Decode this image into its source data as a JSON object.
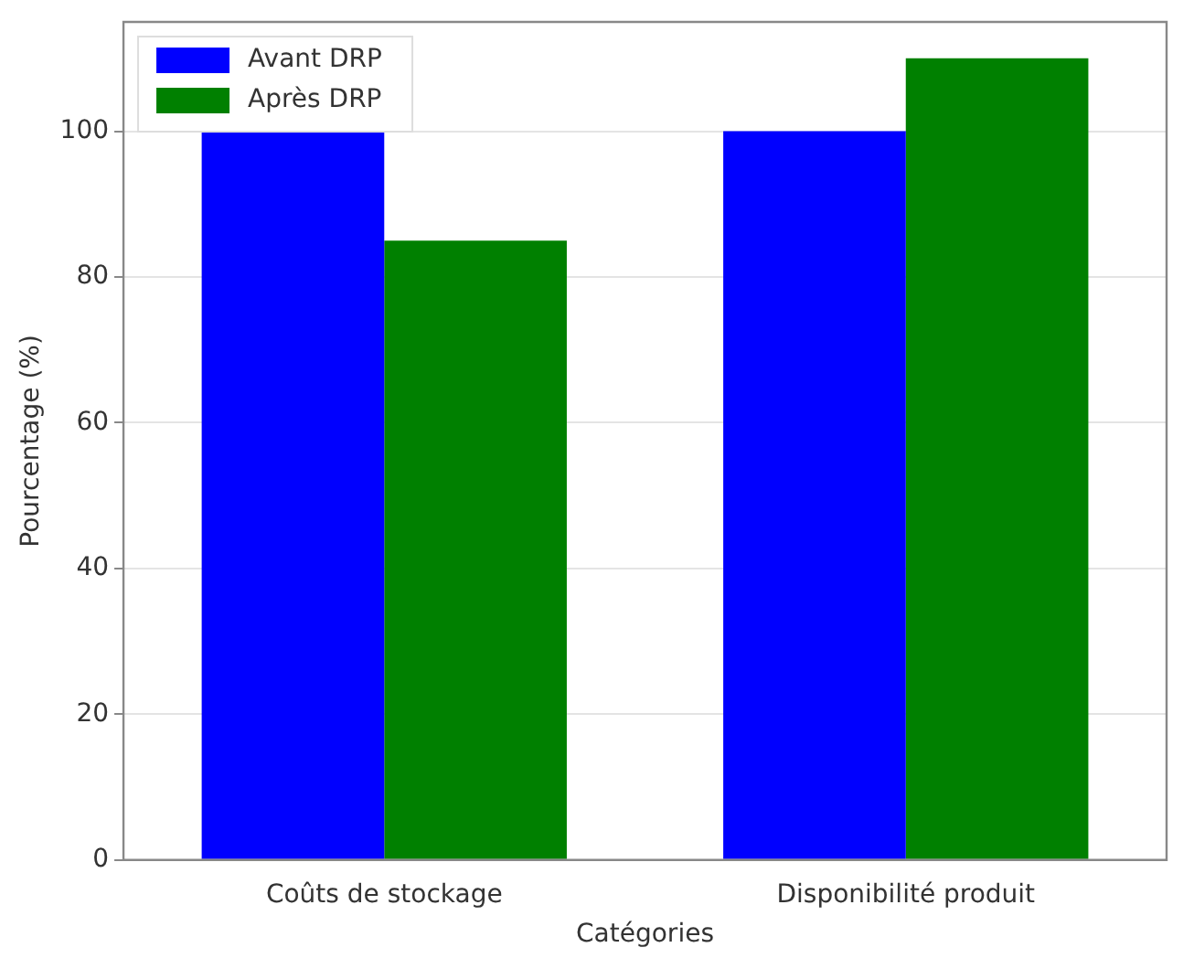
{
  "chart_data": {
    "type": "bar",
    "xlabel": "Catégories",
    "ylabel": "Pourcentage (%)",
    "categories": [
      "Coûts de stockage",
      "Disponibilité produit"
    ],
    "series": [
      {
        "name": "Avant DRP",
        "color": "#0000ff",
        "values": [
          100,
          100
        ]
      },
      {
        "name": "Après DRP",
        "color": "#008000",
        "values": [
          85,
          110
        ]
      }
    ],
    "ylim": [
      0,
      115
    ],
    "yticks": [
      0,
      20,
      40,
      60,
      80,
      100
    ],
    "grid": "y",
    "legend": "top left"
  }
}
